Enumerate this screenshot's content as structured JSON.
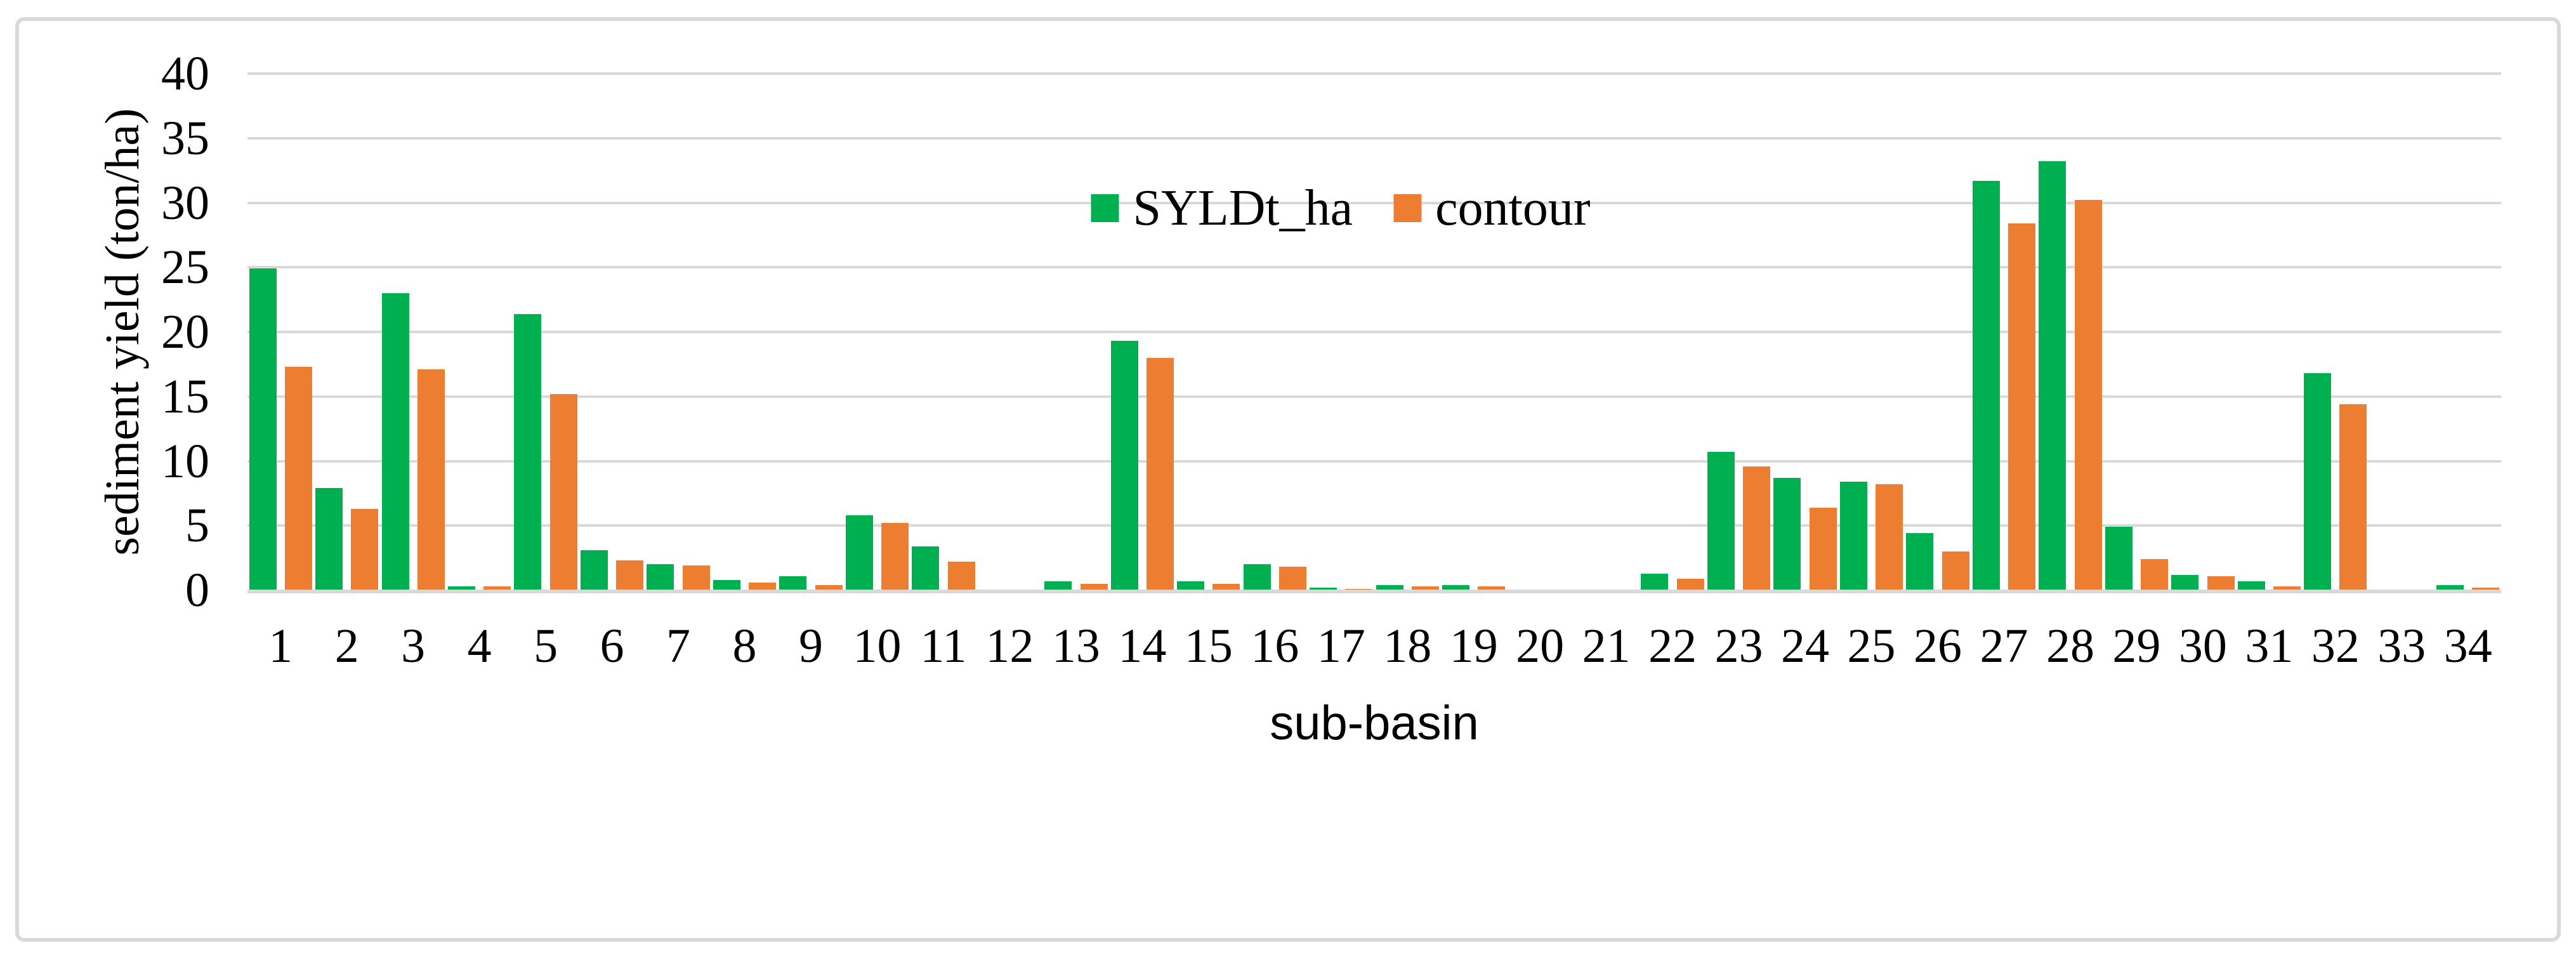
{
  "figure": {
    "y_axis_title": "sediment yield (ton/ha)",
    "x_axis_title": "sub-basin",
    "colors": {
      "series_green": "#00B050",
      "series_orange": "#ED7D31",
      "gridline": "#D9D9D9",
      "frame_border": "#D9D9D9",
      "text": "#000000",
      "background": "#FFFFFF"
    }
  },
  "chart_data": {
    "type": "bar",
    "title": "",
    "xlabel": "sub-basin",
    "ylabel": "sediment yield (ton/ha)",
    "ylim": [
      0,
      40
    ],
    "ytick_step": 5,
    "yticks": [
      0,
      5,
      10,
      15,
      20,
      25,
      30,
      35,
      40
    ],
    "grid": true,
    "legend_position": "top-center",
    "categories": [
      "1",
      "2",
      "3",
      "4",
      "5",
      "6",
      "7",
      "8",
      "9",
      "10",
      "11",
      "12",
      "13",
      "14",
      "15",
      "16",
      "17",
      "18",
      "19",
      "20",
      "21",
      "22",
      "23",
      "24",
      "25",
      "26",
      "27",
      "28",
      "29",
      "30",
      "31",
      "32",
      "33",
      "34"
    ],
    "series": [
      {
        "name": "SYLDt_ha",
        "color": "#00B050",
        "values": [
          24.9,
          7.9,
          23.0,
          0.3,
          21.4,
          3.1,
          2.0,
          0.8,
          1.1,
          5.8,
          3.4,
          0,
          0.7,
          19.3,
          0.7,
          2.0,
          0.2,
          0.4,
          0.4,
          0,
          0,
          1.3,
          10.7,
          8.7,
          8.4,
          4.4,
          31.7,
          33.2,
          4.9,
          1.2,
          0.7,
          16.8,
          0,
          0.4
        ]
      },
      {
        "name": "contour",
        "color": "#ED7D31",
        "values": [
          17.3,
          6.3,
          17.1,
          0.3,
          15.2,
          2.3,
          1.9,
          0.6,
          0.4,
          5.2,
          2.2,
          0,
          0.5,
          18.0,
          0.5,
          1.8,
          0.1,
          0.3,
          0.3,
          0,
          0,
          0.9,
          9.6,
          6.4,
          8.2,
          3.0,
          28.4,
          30.2,
          2.4,
          1.1,
          0.3,
          14.4,
          0,
          0.2
        ]
      }
    ]
  }
}
